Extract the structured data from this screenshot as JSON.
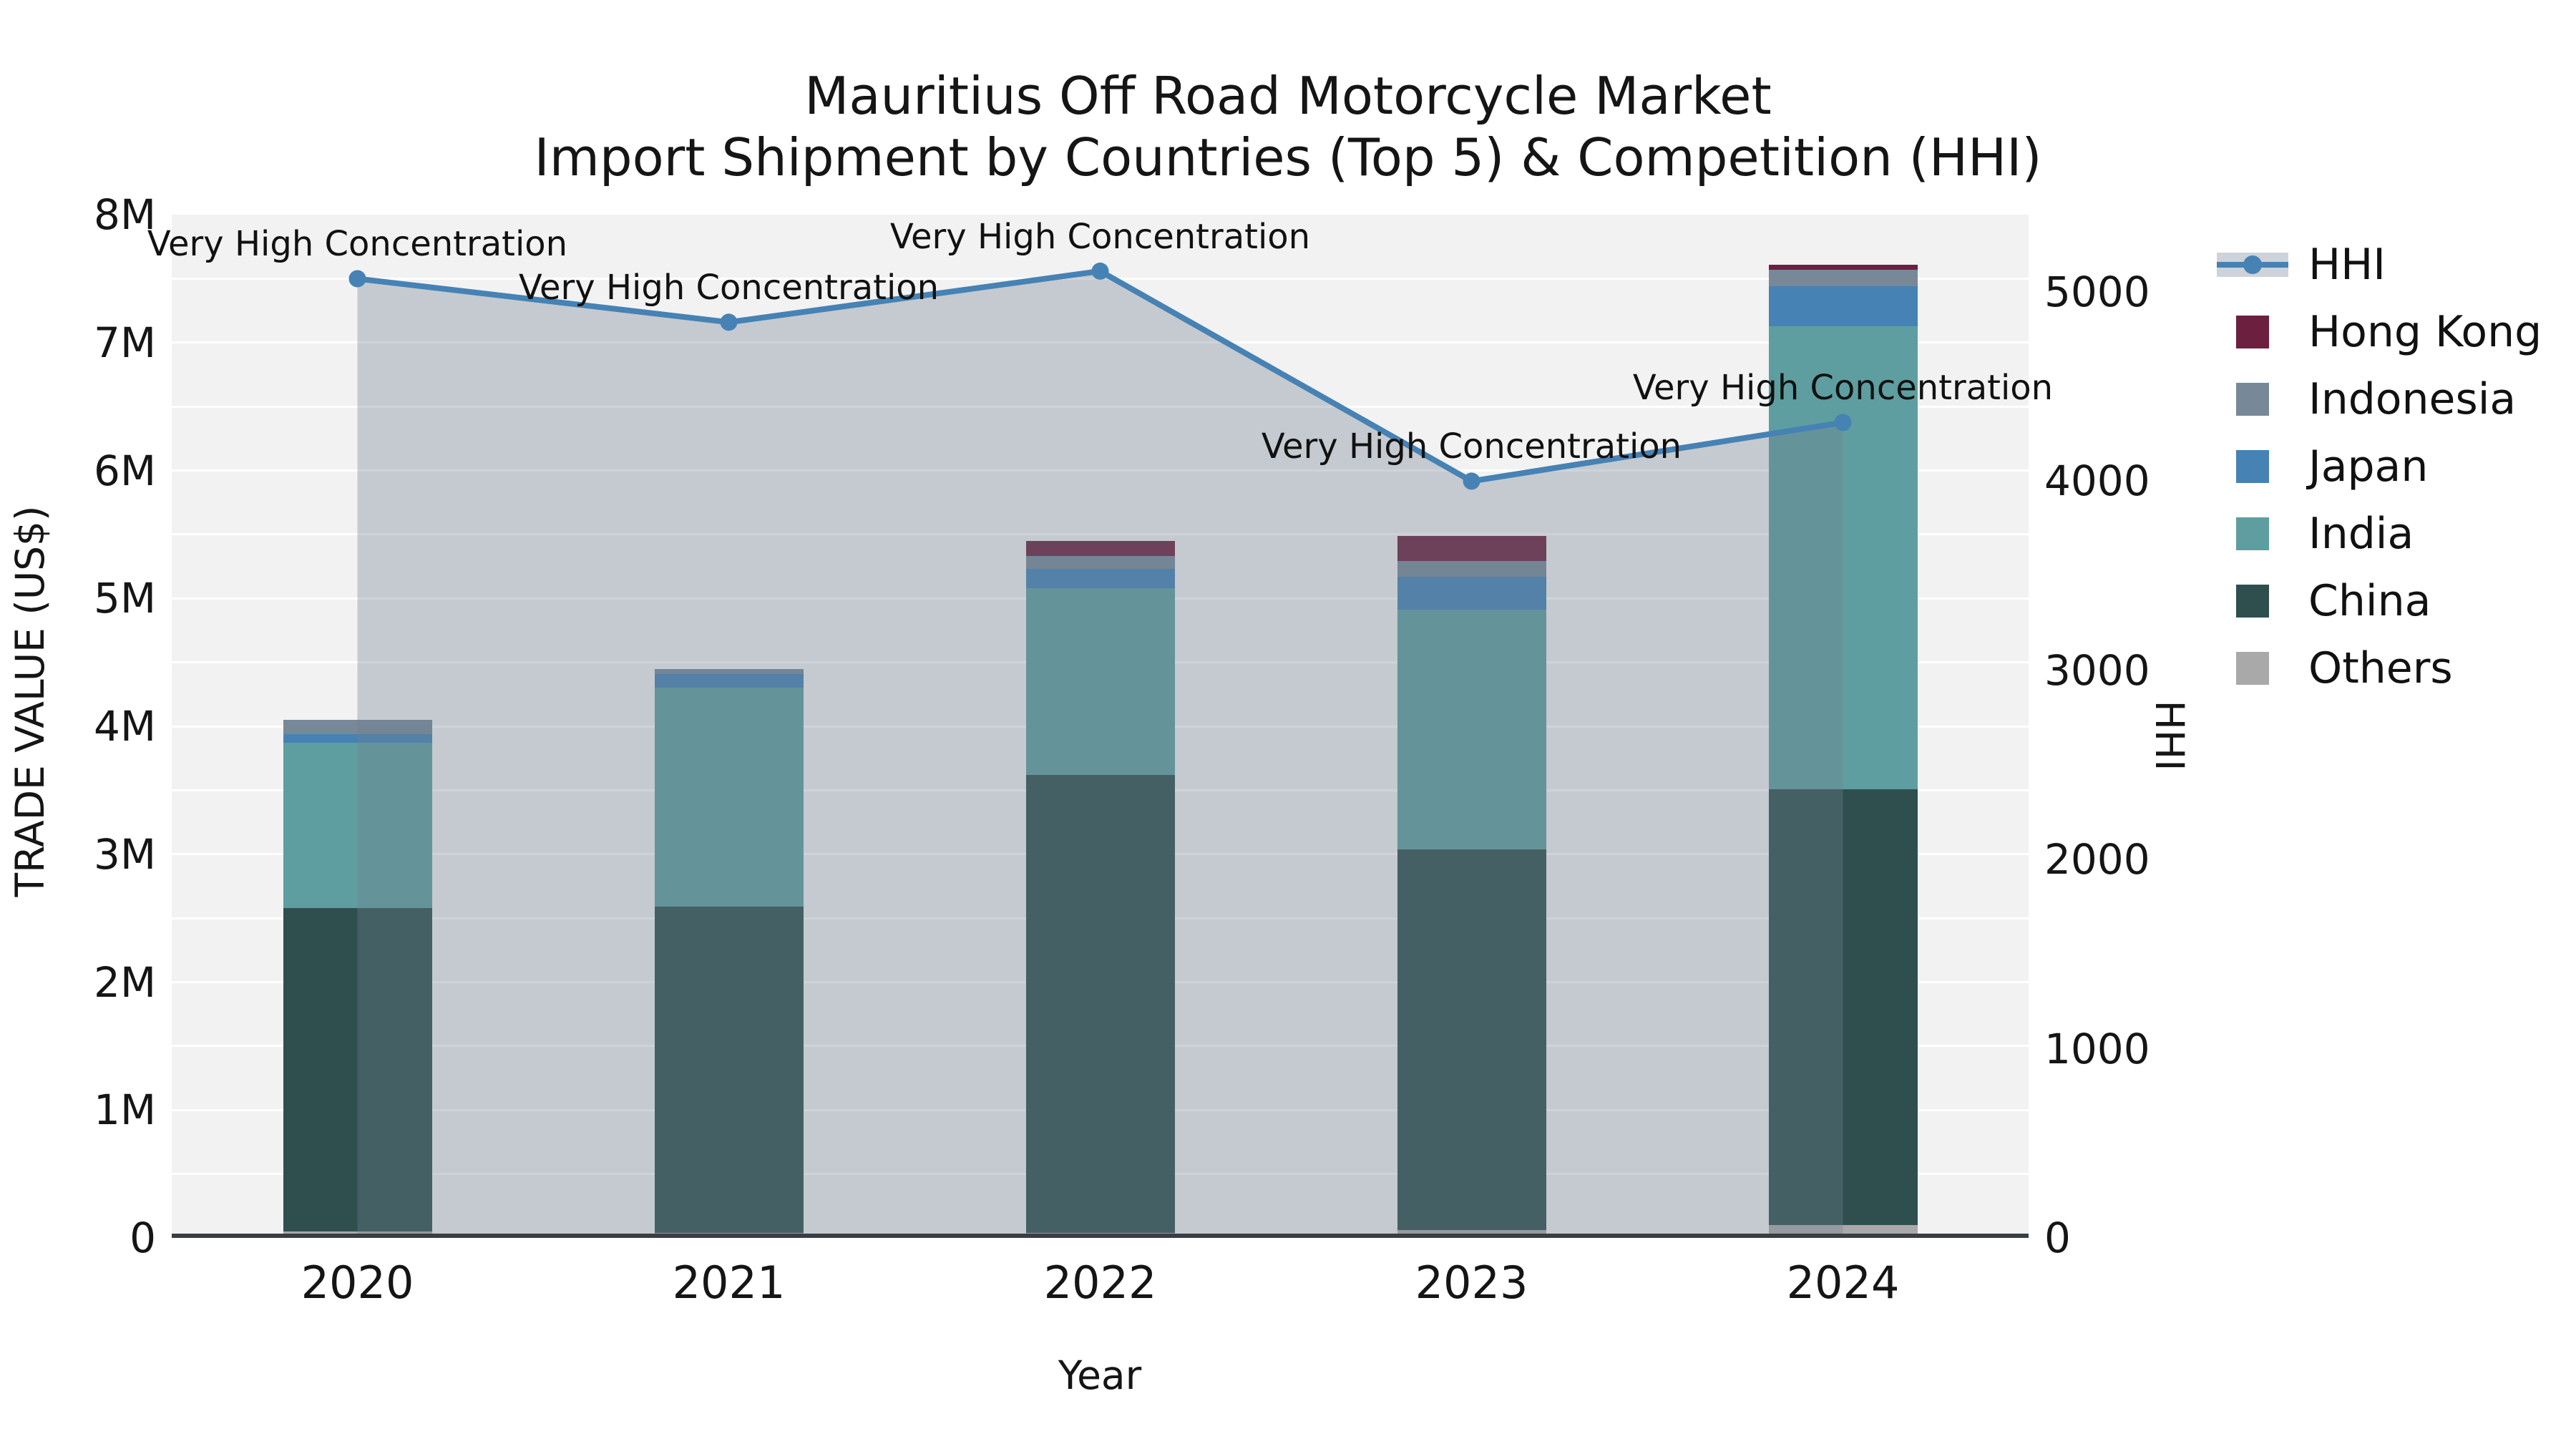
{
  "title": {
    "line1": "Mauritius Off Road Motorcycle Market",
    "line2": "Import Shipment by Countries (Top 5) & Competition (HHI)"
  },
  "axes": {
    "left": {
      "label": "TRADE VALUE (US$)",
      "ticks": [
        "0",
        "1M",
        "2M",
        "3M",
        "4M",
        "5M",
        "6M",
        "7M",
        "8M"
      ]
    },
    "right": {
      "label": "HHI",
      "ticks": [
        "0",
        "1000",
        "2000",
        "3000",
        "4000",
        "5000"
      ]
    },
    "x": {
      "label": "Year",
      "ticks": [
        "2020",
        "2021",
        "2022",
        "2023",
        "2024"
      ]
    }
  },
  "legend": {
    "items": [
      {
        "label": "HHI",
        "type": "line-area",
        "color": "#4682B4"
      },
      {
        "label": "Hong Kong",
        "type": "square",
        "color": "#6D1F3F"
      },
      {
        "label": "Indonesia",
        "type": "square",
        "color": "#778899"
      },
      {
        "label": "Japan",
        "type": "square",
        "color": "#4682B4"
      },
      {
        "label": "India",
        "type": "square",
        "color": "#5F9EA0"
      },
      {
        "label": "China",
        "type": "square",
        "color": "#2F4F4F"
      },
      {
        "label": "Others",
        "type": "square",
        "color": "#A9A9A9"
      }
    ]
  },
  "chart_data": {
    "type": "stacked-bar+line",
    "title": "Mauritius Off Road Motorcycle Market — Import Shipment by Countries (Top 5) & Competition (HHI)",
    "categories": [
      "2020",
      "2021",
      "2022",
      "2023",
      "2024"
    ],
    "bar_unit": "trade value, millions US$",
    "stack_order_bottom_to_top": [
      "Others",
      "China",
      "India",
      "Japan",
      "Indonesia",
      "Hong Kong"
    ],
    "series": [
      {
        "name": "Others",
        "color": "#A9A9A9",
        "values": [
          0.05,
          0.04,
          0.04,
          0.06,
          0.1
        ]
      },
      {
        "name": "China",
        "color": "#2F4F4F",
        "values": [
          2.53,
          2.55,
          3.58,
          2.98,
          3.41
        ]
      },
      {
        "name": "India",
        "color": "#5F9EA0",
        "values": [
          1.29,
          1.71,
          1.46,
          1.87,
          3.62
        ]
      },
      {
        "name": "Japan",
        "color": "#4682B4",
        "values": [
          0.07,
          0.11,
          0.15,
          0.26,
          0.31
        ]
      },
      {
        "name": "Indonesia",
        "color": "#778899",
        "values": [
          0.11,
          0.04,
          0.1,
          0.12,
          0.13
        ]
      },
      {
        "name": "Hong Kong",
        "color": "#6D1F3F",
        "values": [
          0.0,
          0.0,
          0.12,
          0.2,
          0.04
        ]
      }
    ],
    "bar_totals_millions": [
      4.05,
      4.45,
      5.45,
      5.49,
      7.61
    ],
    "line": {
      "name": "HHI",
      "color": "#4682B4",
      "area_fill_color": "#708090",
      "area_fill_opacity": 0.35,
      "values": [
        5070,
        4840,
        5110,
        4000,
        4310
      ]
    },
    "annotation_text": "Very High Concentration",
    "annotations_at_each_point": [
      "Very High Concentration",
      "Very High Concentration",
      "Very High Concentration",
      "Very High Concentration",
      "Very High Concentration"
    ],
    "ylim_left_millions": [
      0,
      8
    ],
    "ylim_right_hhi": [
      0,
      5410
    ],
    "grid": {
      "horizontal": true,
      "color": "#ffffff",
      "step_millions": 0.5
    },
    "plot_background": "#f2f2f2",
    "legend_position": "right-outside"
  }
}
